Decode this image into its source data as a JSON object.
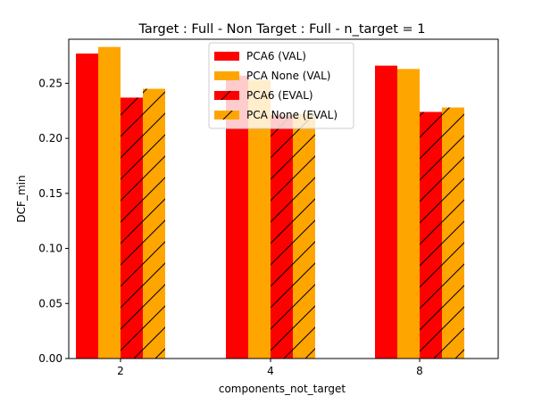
{
  "chart_data": {
    "type": "bar",
    "title": "Target : Full - Non Target : Full  - n_target = 1",
    "xlabel": "components_not_target",
    "ylabel": "DCF_min",
    "categories": [
      "2",
      "4",
      "8"
    ],
    "ylim": [
      0,
      0.29
    ],
    "yticks": [
      "0.00",
      "0.05",
      "0.10",
      "0.15",
      "0.20",
      "0.25"
    ],
    "grid": false,
    "legend_position": "upper-center",
    "series": [
      {
        "name": "PCA6 (VAL)",
        "color": "#ff0000",
        "hatch": false,
        "values": [
          0.277,
          0.257,
          0.266
        ]
      },
      {
        "name": "PCA None (VAL)",
        "color": "#ffa500",
        "hatch": false,
        "values": [
          0.283,
          0.253,
          0.263
        ]
      },
      {
        "name": "PCA6 (EVAL)",
        "color": "#ff0000",
        "hatch": true,
        "values": [
          0.237,
          0.221,
          0.224
        ]
      },
      {
        "name": "PCA None (EVAL)",
        "color": "#ffa500",
        "hatch": true,
        "values": [
          0.245,
          0.222,
          0.228
        ]
      }
    ]
  }
}
